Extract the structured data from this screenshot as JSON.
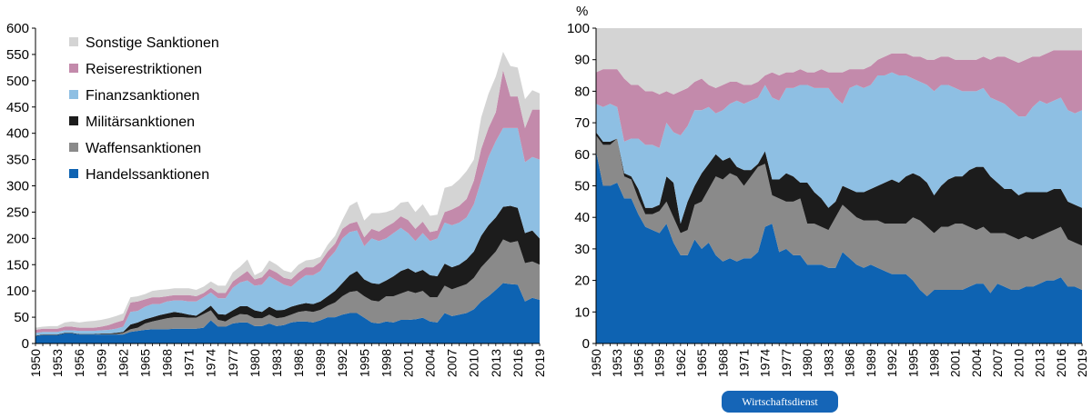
{
  "colors": {
    "handel": "#0e63b2",
    "waffen": "#8a8a8a",
    "militaer": "#1c1c1c",
    "finanz": "#8ebfe3",
    "reise": "#c38aab",
    "sonstige": "#d4d4d4"
  },
  "chart_data": [
    {
      "type": "area",
      "stacked": true,
      "ylim": [
        0,
        600
      ],
      "yticks": [
        "0",
        "50",
        "100",
        "150",
        "200",
        "250",
        "300",
        "350",
        "400",
        "450",
        "500",
        "550",
        "600"
      ],
      "years": [
        1950,
        1951,
        1952,
        1953,
        1954,
        1955,
        1956,
        1957,
        1958,
        1959,
        1960,
        1961,
        1962,
        1963,
        1964,
        1965,
        1966,
        1967,
        1968,
        1969,
        1970,
        1971,
        1972,
        1973,
        1974,
        1975,
        1976,
        1977,
        1978,
        1979,
        1980,
        1981,
        1982,
        1983,
        1984,
        1985,
        1986,
        1987,
        1988,
        1989,
        1990,
        1991,
        1992,
        1993,
        1994,
        1995,
        1996,
        1997,
        1998,
        1999,
        2000,
        2001,
        2002,
        2003,
        2004,
        2005,
        2006,
        2007,
        2008,
        2009,
        2010,
        2011,
        2012,
        2013,
        2014,
        2015,
        2016,
        2017,
        2018,
        2019
      ],
      "xtick_labels": [
        "1950",
        "1953",
        "1956",
        "1959",
        "1962",
        "1965",
        "1968",
        "1971",
        "1974",
        "1977",
        "1980",
        "1983",
        "1986",
        "1989",
        "1992",
        "1995",
        "1998",
        "2001",
        "2004",
        "2007",
        "2010",
        "2013",
        "2016",
        "2019"
      ],
      "legend": [
        {
          "key": "sonstige",
          "label": "Sonstige Sanktionen"
        },
        {
          "key": "reise",
          "label": "Reiserestriktionen"
        },
        {
          "key": "finanz",
          "label": "Finanzsanktionen"
        },
        {
          "key": "militaer",
          "label": "Militärsanktionen"
        },
        {
          "key": "waffen",
          "label": "Waffensanktionen"
        },
        {
          "key": "handel",
          "label": "Handelssanktionen"
        }
      ],
      "series_order": [
        "handel",
        "waffen",
        "militaer",
        "finanz",
        "reise",
        "sonstige"
      ],
      "cumulative": {
        "handel": [
          14,
          16,
          16,
          16,
          19,
          19,
          17,
          17,
          17,
          17,
          17,
          17,
          17,
          22,
          24,
          26,
          27,
          27,
          27,
          28,
          28,
          28,
          28,
          30,
          44,
          32,
          32,
          38,
          40,
          40,
          33,
          33,
          38,
          33,
          35,
          40,
          42,
          42,
          40,
          44,
          50,
          50,
          55,
          58,
          58,
          49,
          40,
          38,
          42,
          40,
          45,
          45,
          46,
          49,
          42,
          40,
          58,
          52,
          55,
          58,
          65,
          80,
          90,
          102,
          115,
          113,
          112,
          80,
          87,
          83
        ],
        "waffen": [
          14,
          16,
          16,
          16,
          19,
          19,
          17,
          17,
          17,
          18,
          18,
          18,
          20,
          27,
          30,
          38,
          42,
          45,
          48,
          50,
          50,
          49,
          49,
          56,
          63,
          45,
          42,
          50,
          56,
          55,
          48,
          48,
          55,
          48,
          50,
          55,
          60,
          62,
          60,
          64,
          72,
          78,
          90,
          98,
          100,
          90,
          82,
          80,
          90,
          90,
          95,
          100,
          96,
          100,
          88,
          88,
          110,
          103,
          108,
          113,
          125,
          145,
          160,
          175,
          198,
          192,
          195,
          153,
          156,
          150
        ],
        "militaer": [
          15,
          17,
          17,
          17,
          20,
          20,
          18,
          18,
          18,
          19,
          19,
          20,
          22,
          36,
          40,
          46,
          50,
          54,
          57,
          60,
          58,
          55,
          53,
          62,
          72,
          56,
          55,
          63,
          71,
          71,
          63,
          60,
          70,
          63,
          64,
          70,
          74,
          77,
          75,
          80,
          90,
          100,
          115,
          130,
          138,
          122,
          115,
          113,
          120,
          128,
          138,
          143,
          135,
          140,
          130,
          128,
          152,
          145,
          150,
          160,
          175,
          205,
          225,
          240,
          260,
          262,
          258,
          210,
          215,
          200
        ],
        "finanz": [
          20,
          22,
          22,
          22,
          25,
          25,
          24,
          24,
          24,
          25,
          26,
          28,
          32,
          60,
          62,
          70,
          75,
          75,
          80,
          82,
          82,
          80,
          80,
          88,
          97,
          86,
          86,
          106,
          116,
          120,
          110,
          112,
          128,
          120,
          112,
          108,
          120,
          130,
          130,
          138,
          160,
          175,
          200,
          212,
          215,
          185,
          200,
          195,
          200,
          210,
          220,
          210,
          195,
          210,
          195,
          200,
          230,
          225,
          230,
          240,
          265,
          310,
          355,
          385,
          410,
          410,
          410,
          345,
          355,
          350
        ],
        "reise": [
          26,
          28,
          28,
          28,
          32,
          32,
          30,
          30,
          30,
          32,
          35,
          40,
          44,
          78,
          80,
          84,
          88,
          88,
          90,
          92,
          92,
          92,
          90,
          96,
          106,
          96,
          96,
          118,
          128,
          138,
          122,
          126,
          142,
          135,
          125,
          122,
          135,
          145,
          145,
          155,
          175,
          190,
          218,
          228,
          232,
          202,
          218,
          213,
          222,
          230,
          242,
          235,
          218,
          232,
          212,
          215,
          250,
          255,
          262,
          275,
          310,
          370,
          410,
          440,
          520,
          470,
          470,
          410,
          445,
          445
        ],
        "sonstige": [
          30,
          32,
          33,
          33,
          40,
          42,
          40,
          42,
          43,
          45,
          48,
          52,
          57,
          88,
          90,
          94,
          100,
          102,
          103,
          105,
          105,
          105,
          102,
          108,
          118,
          110,
          110,
          135,
          146,
          160,
          130,
          137,
          158,
          150,
          139,
          135,
          150,
          158,
          160,
          165,
          188,
          205,
          235,
          262,
          270,
          234,
          248,
          248,
          250,
          255,
          268,
          270,
          250,
          265,
          243,
          245,
          296,
          300,
          312,
          328,
          350,
          430,
          475,
          508,
          555,
          528,
          525,
          465,
          482,
          476
        ]
      }
    },
    {
      "type": "area",
      "stacked": true,
      "unit": "%",
      "ylim": [
        0,
        100
      ],
      "yticks": [
        "0",
        "10",
        "20",
        "30",
        "40",
        "50",
        "60",
        "70",
        "80",
        "90",
        "100"
      ],
      "years": [
        1950,
        1951,
        1952,
        1953,
        1954,
        1955,
        1956,
        1957,
        1958,
        1959,
        1960,
        1961,
        1962,
        1963,
        1964,
        1965,
        1966,
        1967,
        1968,
        1969,
        1970,
        1971,
        1972,
        1973,
        1974,
        1975,
        1976,
        1977,
        1978,
        1979,
        1980,
        1981,
        1982,
        1983,
        1984,
        1985,
        1986,
        1987,
        1988,
        1989,
        1990,
        1991,
        1992,
        1993,
        1994,
        1995,
        1996,
        1997,
        1998,
        1999,
        2000,
        2001,
        2002,
        2003,
        2004,
        2005,
        2006,
        2007,
        2008,
        2009,
        2010,
        2011,
        2012,
        2013,
        2014,
        2015,
        2016,
        2017,
        2018,
        2019
      ],
      "xtick_labels": [
        "1950",
        "1953",
        "1956",
        "1959",
        "1962",
        "1965",
        "1968",
        "1971",
        "1974",
        "1977",
        "1980",
        "1983",
        "1986",
        "1989",
        "1992",
        "1995",
        "1998",
        "2001",
        "2004",
        "2007",
        "2010",
        "2013",
        "2016",
        "2019"
      ],
      "series_order": [
        "handel",
        "waffen",
        "militaer",
        "finanz",
        "reise",
        "sonstige"
      ],
      "cumulative": {
        "handel": [
          61,
          50,
          50,
          51,
          46,
          46,
          41,
          37,
          36,
          35,
          38,
          32,
          28,
          28,
          33,
          30,
          32,
          28,
          26,
          27,
          26,
          27,
          27,
          29,
          37,
          38,
          29,
          30,
          28,
          28,
          25,
          25,
          25,
          24,
          24,
          29,
          27,
          25,
          24,
          25,
          24,
          23,
          22,
          22,
          22,
          20,
          17,
          15,
          17,
          17,
          17,
          17,
          17,
          18,
          19,
          19,
          16,
          19,
          18,
          17,
          17,
          18,
          18,
          19,
          20,
          20,
          21,
          18,
          18,
          17
        ],
        "waffen": [
          66,
          63,
          63,
          65,
          53,
          52,
          46,
          41,
          41,
          42,
          45,
          40,
          35,
          36,
          44,
          45,
          49,
          53,
          52,
          54,
          53,
          50,
          53,
          56,
          57,
          47,
          46,
          45,
          45,
          46,
          38,
          38,
          37,
          36,
          40,
          44,
          42,
          40,
          39,
          39,
          39,
          38,
          38,
          38,
          38,
          40,
          39,
          37,
          35,
          37,
          37,
          38,
          38,
          37,
          36,
          37,
          35,
          35,
          35,
          34,
          33,
          34,
          33,
          34,
          35,
          36,
          37,
          33,
          32,
          31
        ],
        "militaer": [
          67,
          64,
          64,
          65,
          54,
          53,
          49,
          43,
          43,
          44,
          53,
          51,
          38,
          45,
          50,
          54,
          57,
          60,
          58,
          59,
          56,
          55,
          55,
          57,
          61,
          52,
          52,
          54,
          53,
          51,
          51,
          48,
          46,
          43,
          45,
          50,
          49,
          48,
          48,
          49,
          50,
          51,
          52,
          51,
          53,
          54,
          53,
          51,
          47,
          50,
          52,
          53,
          53,
          55,
          56,
          56,
          53,
          51,
          49,
          49,
          47,
          48,
          48,
          48,
          48,
          49,
          49,
          45,
          44,
          43
        ],
        "finanz": [
          76,
          75,
          76,
          75,
          64,
          65,
          65,
          63,
          63,
          62,
          70,
          67,
          66,
          69,
          74,
          74,
          75,
          73,
          74,
          76,
          77,
          76,
          77,
          78,
          82,
          78,
          77,
          81,
          81,
          82,
          82,
          81,
          81,
          81,
          78,
          76,
          81,
          82,
          81,
          82,
          85,
          85,
          86,
          85,
          85,
          84,
          83,
          82,
          80,
          82,
          82,
          81,
          80,
          80,
          80,
          81,
          78,
          77,
          76,
          74,
          72,
          72,
          75,
          77,
          76,
          77,
          78,
          74,
          73,
          74
        ],
        "reise": [
          86,
          87,
          87,
          87,
          84,
          82,
          82,
          80,
          80,
          79,
          80,
          79,
          80,
          81,
          83,
          84,
          82,
          81,
          82,
          83,
          83,
          82,
          82,
          83,
          85,
          86,
          85,
          86,
          86,
          87,
          86,
          86,
          87,
          86,
          86,
          86,
          87,
          87,
          87,
          88,
          90,
          91,
          92,
          92,
          92,
          91,
          91,
          90,
          90,
          91,
          91,
          90,
          90,
          90,
          90,
          91,
          90,
          91,
          91,
          90,
          89,
          90,
          91,
          91,
          92,
          93,
          93,
          93,
          93,
          93
        ],
        "sonstige": [
          100,
          100,
          100,
          100,
          100,
          100,
          100,
          100,
          100,
          100,
          100,
          100,
          100,
          100,
          100,
          100,
          100,
          100,
          100,
          100,
          100,
          100,
          100,
          100,
          100,
          100,
          100,
          100,
          100,
          100,
          100,
          100,
          100,
          100,
          100,
          100,
          100,
          100,
          100,
          100,
          100,
          100,
          100,
          100,
          100,
          100,
          100,
          100,
          100,
          100,
          100,
          100,
          100,
          100,
          100,
          100,
          100,
          100,
          100,
          100,
          100,
          100,
          100,
          100,
          100,
          100,
          100,
          100,
          100,
          100
        ]
      }
    }
  ],
  "footer": {
    "badge_label": "Wirtschaftsdienst"
  }
}
